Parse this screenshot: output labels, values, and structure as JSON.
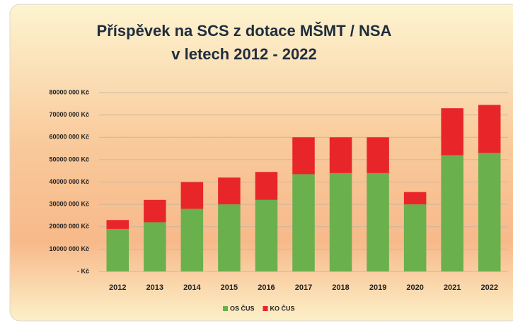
{
  "chart_data": {
    "type": "stacked_bar",
    "title": [
      "Příspěvek na SCS z dotace MŠMT / NSA",
      "v letech 2012 - 2022"
    ],
    "categories": [
      "2012",
      "2013",
      "2014",
      "2015",
      "2016",
      "2017",
      "2018",
      "2019",
      "2020",
      "2021",
      "2022"
    ],
    "series": [
      {
        "name": "OS ČUS",
        "color": "#6ab04c",
        "values": [
          19000000,
          22000000,
          28000000,
          30000000,
          32000000,
          43500000,
          44000000,
          44000000,
          30000000,
          52000000,
          53000000
        ]
      },
      {
        "name": "KO ČUS",
        "color": "#e8262a",
        "values": [
          4000000,
          10000000,
          12000000,
          12000000,
          12500000,
          16500000,
          16000000,
          16000000,
          5500000,
          21000000,
          21500000
        ]
      }
    ],
    "ylim": [
      0,
      80000000
    ],
    "yticks": [
      {
        "value": 0,
        "label": "- Kč"
      },
      {
        "value": 10000000,
        "label": "10000 000 Kč"
      },
      {
        "value": 20000000,
        "label": "20000 000 Kč"
      },
      {
        "value": 30000000,
        "label": "30000 000 Kč"
      },
      {
        "value": 40000000,
        "label": "40000 000 Kč"
      },
      {
        "value": 50000000,
        "label": "50000 000 Kč"
      },
      {
        "value": 60000000,
        "label": "60000 000 Kč"
      },
      {
        "value": 70000000,
        "label": "70000 000 Kč"
      },
      {
        "value": 80000000,
        "label": "80000 000 Kč"
      }
    ],
    "grid": true,
    "legend": "bottom"
  }
}
